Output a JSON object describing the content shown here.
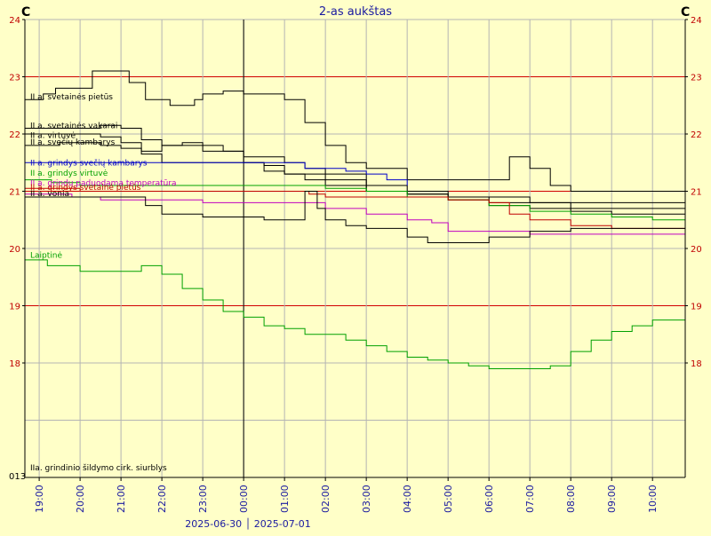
{
  "chart_data": {
    "type": "line",
    "title": "2-as aukštas",
    "unit_left": "C",
    "unit_right": "C",
    "ylim": [
      16,
      24
    ],
    "y_ticks": [
      {
        "v": 18,
        "label": "18"
      },
      {
        "v": 19,
        "label": "19"
      },
      {
        "v": 20,
        "label": "20"
      },
      {
        "v": 21,
        "label": "21"
      },
      {
        "v": 22,
        "label": "22"
      },
      {
        "v": 23,
        "label": "23"
      },
      {
        "v": 24,
        "label": "24"
      }
    ],
    "y_red_lines": [
      19,
      21,
      23
    ],
    "bottom_tick_label": "013",
    "x_hour_range": [
      18.65,
      34.8
    ],
    "x_ticks": [
      {
        "h": 19,
        "label": "19:00"
      },
      {
        "h": 20,
        "label": "20:00"
      },
      {
        "h": 21,
        "label": "21:00"
      },
      {
        "h": 22,
        "label": "22:00"
      },
      {
        "h": 23,
        "label": "23:00"
      },
      {
        "h": 24,
        "label": "00:00"
      },
      {
        "h": 25,
        "label": "01:00"
      },
      {
        "h": 26,
        "label": "02:00"
      },
      {
        "h": 27,
        "label": "03:00"
      },
      {
        "h": 28,
        "label": "04:00"
      },
      {
        "h": 29,
        "label": "05:00"
      },
      {
        "h": 30,
        "label": "06:00"
      },
      {
        "h": 31,
        "label": "07:00"
      },
      {
        "h": 32,
        "label": "08:00"
      },
      {
        "h": 33,
        "label": "09:00"
      },
      {
        "h": 34,
        "label": "10:00"
      }
    ],
    "midnight_hour": 24,
    "date_label": "2025-06-30 │ 2025-07-01",
    "series": [
      {
        "name": "II a. svetainės pietūs",
        "color": "#000000",
        "label_value": 22.65,
        "x": [
          18.65,
          19.1,
          19.4,
          20.3,
          21.0,
          21.2,
          21.6,
          22.2,
          22.8,
          23.0,
          23.5,
          24.0,
          24.5,
          25.0,
          25.5,
          26.0,
          26.5,
          27.0,
          28.0,
          29.0,
          30.0,
          30.5,
          31.0,
          31.5,
          32.0,
          33.0,
          34.0,
          34.8
        ],
        "y": [
          22.6,
          22.7,
          22.8,
          23.1,
          23.1,
          22.9,
          22.6,
          22.5,
          22.6,
          22.7,
          22.75,
          22.7,
          22.7,
          22.6,
          22.2,
          21.8,
          21.5,
          21.4,
          21.2,
          21.2,
          21.2,
          21.6,
          21.4,
          21.1,
          21.0,
          21.0,
          21.0,
          20.9
        ]
      },
      {
        "name": "II a. svetainės vakarai",
        "color": "#000000",
        "label_value": 22.15,
        "x": [
          18.65,
          19.5,
          20.5,
          21.0,
          21.5,
          22.0,
          23.0,
          24.0,
          25.0,
          25.5,
          26.0,
          27.0,
          28.0,
          29.0,
          30.0,
          31.0,
          32.0,
          33.0,
          34.0,
          34.8
        ],
        "y": [
          22.1,
          22.1,
          22.15,
          22.1,
          21.9,
          21.8,
          21.7,
          21.6,
          21.5,
          21.4,
          21.3,
          21.1,
          21.0,
          20.9,
          20.8,
          20.8,
          20.7,
          20.7,
          20.7,
          20.7
        ]
      },
      {
        "name": "II a. virtuvė",
        "color": "#000000",
        "label_value": 21.98,
        "x": [
          18.65,
          19.5,
          20.5,
          21.0,
          21.5,
          22.0,
          22.5,
          23.0,
          23.5,
          24.0,
          24.5,
          25.0,
          25.5,
          26.0,
          27.0,
          28.0,
          29.0,
          30.0,
          31.0,
          32.0,
          33.0,
          34.0,
          34.8
        ],
        "y": [
          22.0,
          22.0,
          21.95,
          21.85,
          21.7,
          21.8,
          21.85,
          21.8,
          21.7,
          21.5,
          21.35,
          21.3,
          21.3,
          21.2,
          21.0,
          20.95,
          20.9,
          20.9,
          20.8,
          20.8,
          20.8,
          20.8,
          20.8
        ]
      },
      {
        "name": "II a. svečių kambarys",
        "color": "#000000",
        "label_value": 21.86,
        "x": [
          18.65,
          19.5,
          20.5,
          21.0,
          21.5,
          22.0,
          23.0,
          24.0,
          24.5,
          25.0,
          25.5,
          26.0,
          27.0,
          28.0,
          29.0,
          30.0,
          31.0,
          32.0,
          33.0,
          34.0,
          34.8
        ],
        "y": [
          21.8,
          21.85,
          21.8,
          21.75,
          21.65,
          21.5,
          21.5,
          21.5,
          21.45,
          21.3,
          21.2,
          21.1,
          21.0,
          20.95,
          20.85,
          20.75,
          20.7,
          20.65,
          20.6,
          20.6,
          20.6
        ]
      },
      {
        "name": "II a. grindys svečių kambarys",
        "color": "#0000c8",
        "label_value": 21.5,
        "x": [
          18.65,
          20.0,
          21.0,
          22.0,
          23.0,
          24.0,
          25.0,
          25.5,
          26.0,
          26.5,
          27.0,
          27.5,
          28.0
        ],
        "y": [
          21.5,
          21.5,
          21.5,
          21.5,
          21.5,
          21.5,
          21.5,
          21.4,
          21.4,
          21.35,
          21.3,
          21.2,
          21.1
        ]
      },
      {
        "name": "II a. grindys virtuvė",
        "color": "#00a000",
        "label_value": 21.32,
        "x": [
          18.65,
          19.3,
          20.0,
          21.0,
          22.0,
          23.0,
          24.0,
          25.0,
          26.0,
          27.0,
          28.0,
          29.0,
          30.0,
          31.0,
          32.0,
          33.0,
          34.0,
          34.8
        ],
        "y": [
          21.2,
          21.15,
          21.1,
          21.1,
          21.1,
          21.1,
          21.1,
          21.1,
          21.05,
          21.0,
          20.9,
          20.85,
          20.75,
          20.65,
          20.6,
          20.55,
          20.5,
          20.55
        ]
      },
      {
        "name": "II a. grindų paduodama temperatūra",
        "color": "#c000c0",
        "label_value": 21.15,
        "x": [
          18.65,
          19.8,
          20.5,
          21.5,
          22.0,
          23.0,
          24.0,
          25.0,
          25.6,
          26.0,
          27.0,
          28.0,
          28.6,
          29.0,
          30.0,
          31.0,
          32.0,
          33.0,
          34.0,
          34.8
        ],
        "y": [
          20.95,
          20.9,
          20.85,
          20.85,
          20.85,
          20.8,
          20.8,
          20.8,
          20.8,
          20.7,
          20.6,
          20.5,
          20.45,
          20.3,
          20.3,
          20.25,
          20.25,
          20.25,
          20.25,
          20.25
        ]
      },
      {
        "name": "II a. grindys svetainė pietūs",
        "color": "#c00000",
        "label_value": 21.07,
        "x": [
          18.65,
          20.0,
          21.0,
          22.0,
          23.0,
          24.0,
          25.0,
          25.6,
          26.0,
          27.0,
          28.0,
          29.0,
          30.0,
          30.5,
          31.0,
          32.0,
          33.0,
          34.0,
          34.8
        ],
        "y": [
          21.05,
          21.0,
          21.0,
          21.0,
          21.0,
          21.0,
          21.0,
          20.95,
          20.9,
          20.9,
          20.9,
          20.85,
          20.8,
          20.6,
          20.5,
          20.4,
          20.35,
          20.35,
          20.35
        ]
      },
      {
        "name": "II a. vonia",
        "color": "#000000",
        "label_value": 20.96,
        "x": [
          18.65,
          20.0,
          21.0,
          21.6,
          22.0,
          23.0,
          24.0,
          24.5,
          25.0,
          25.5,
          25.8,
          26.0,
          26.5,
          27.0,
          28.0,
          28.5,
          29.0,
          30.0,
          31.0,
          32.0,
          33.0,
          34.0,
          34.8
        ],
        "y": [
          20.9,
          20.9,
          20.9,
          20.75,
          20.6,
          20.55,
          20.55,
          20.5,
          20.5,
          21.0,
          20.7,
          20.5,
          20.4,
          20.35,
          20.2,
          20.1,
          20.1,
          20.2,
          20.3,
          20.35,
          20.35,
          20.35,
          20.4
        ]
      },
      {
        "name": "Laiptinė",
        "color": "#00a000",
        "label_value": 19.88,
        "x": [
          18.65,
          19.2,
          20.0,
          21.0,
          21.5,
          22.0,
          22.5,
          23.0,
          23.5,
          24.0,
          24.5,
          25.0,
          25.5,
          26.0,
          26.5,
          27.0,
          27.5,
          28.0,
          28.5,
          29.0,
          29.5,
          30.0,
          30.5,
          31.0,
          31.5,
          32.0,
          32.5,
          33.0,
          33.5,
          34.0,
          34.8
        ],
        "y": [
          19.8,
          19.7,
          19.6,
          19.6,
          19.7,
          19.55,
          19.3,
          19.1,
          18.9,
          18.8,
          18.65,
          18.6,
          18.5,
          18.5,
          18.4,
          18.3,
          18.2,
          18.1,
          18.05,
          18.0,
          17.95,
          17.9,
          17.9,
          17.9,
          17.95,
          18.2,
          18.4,
          18.55,
          18.65,
          18.75,
          18.8
        ]
      }
    ],
    "pump_label": "IIa. grindinio šildymo cirk. siurblys",
    "pump_label_value": 16.45
  }
}
